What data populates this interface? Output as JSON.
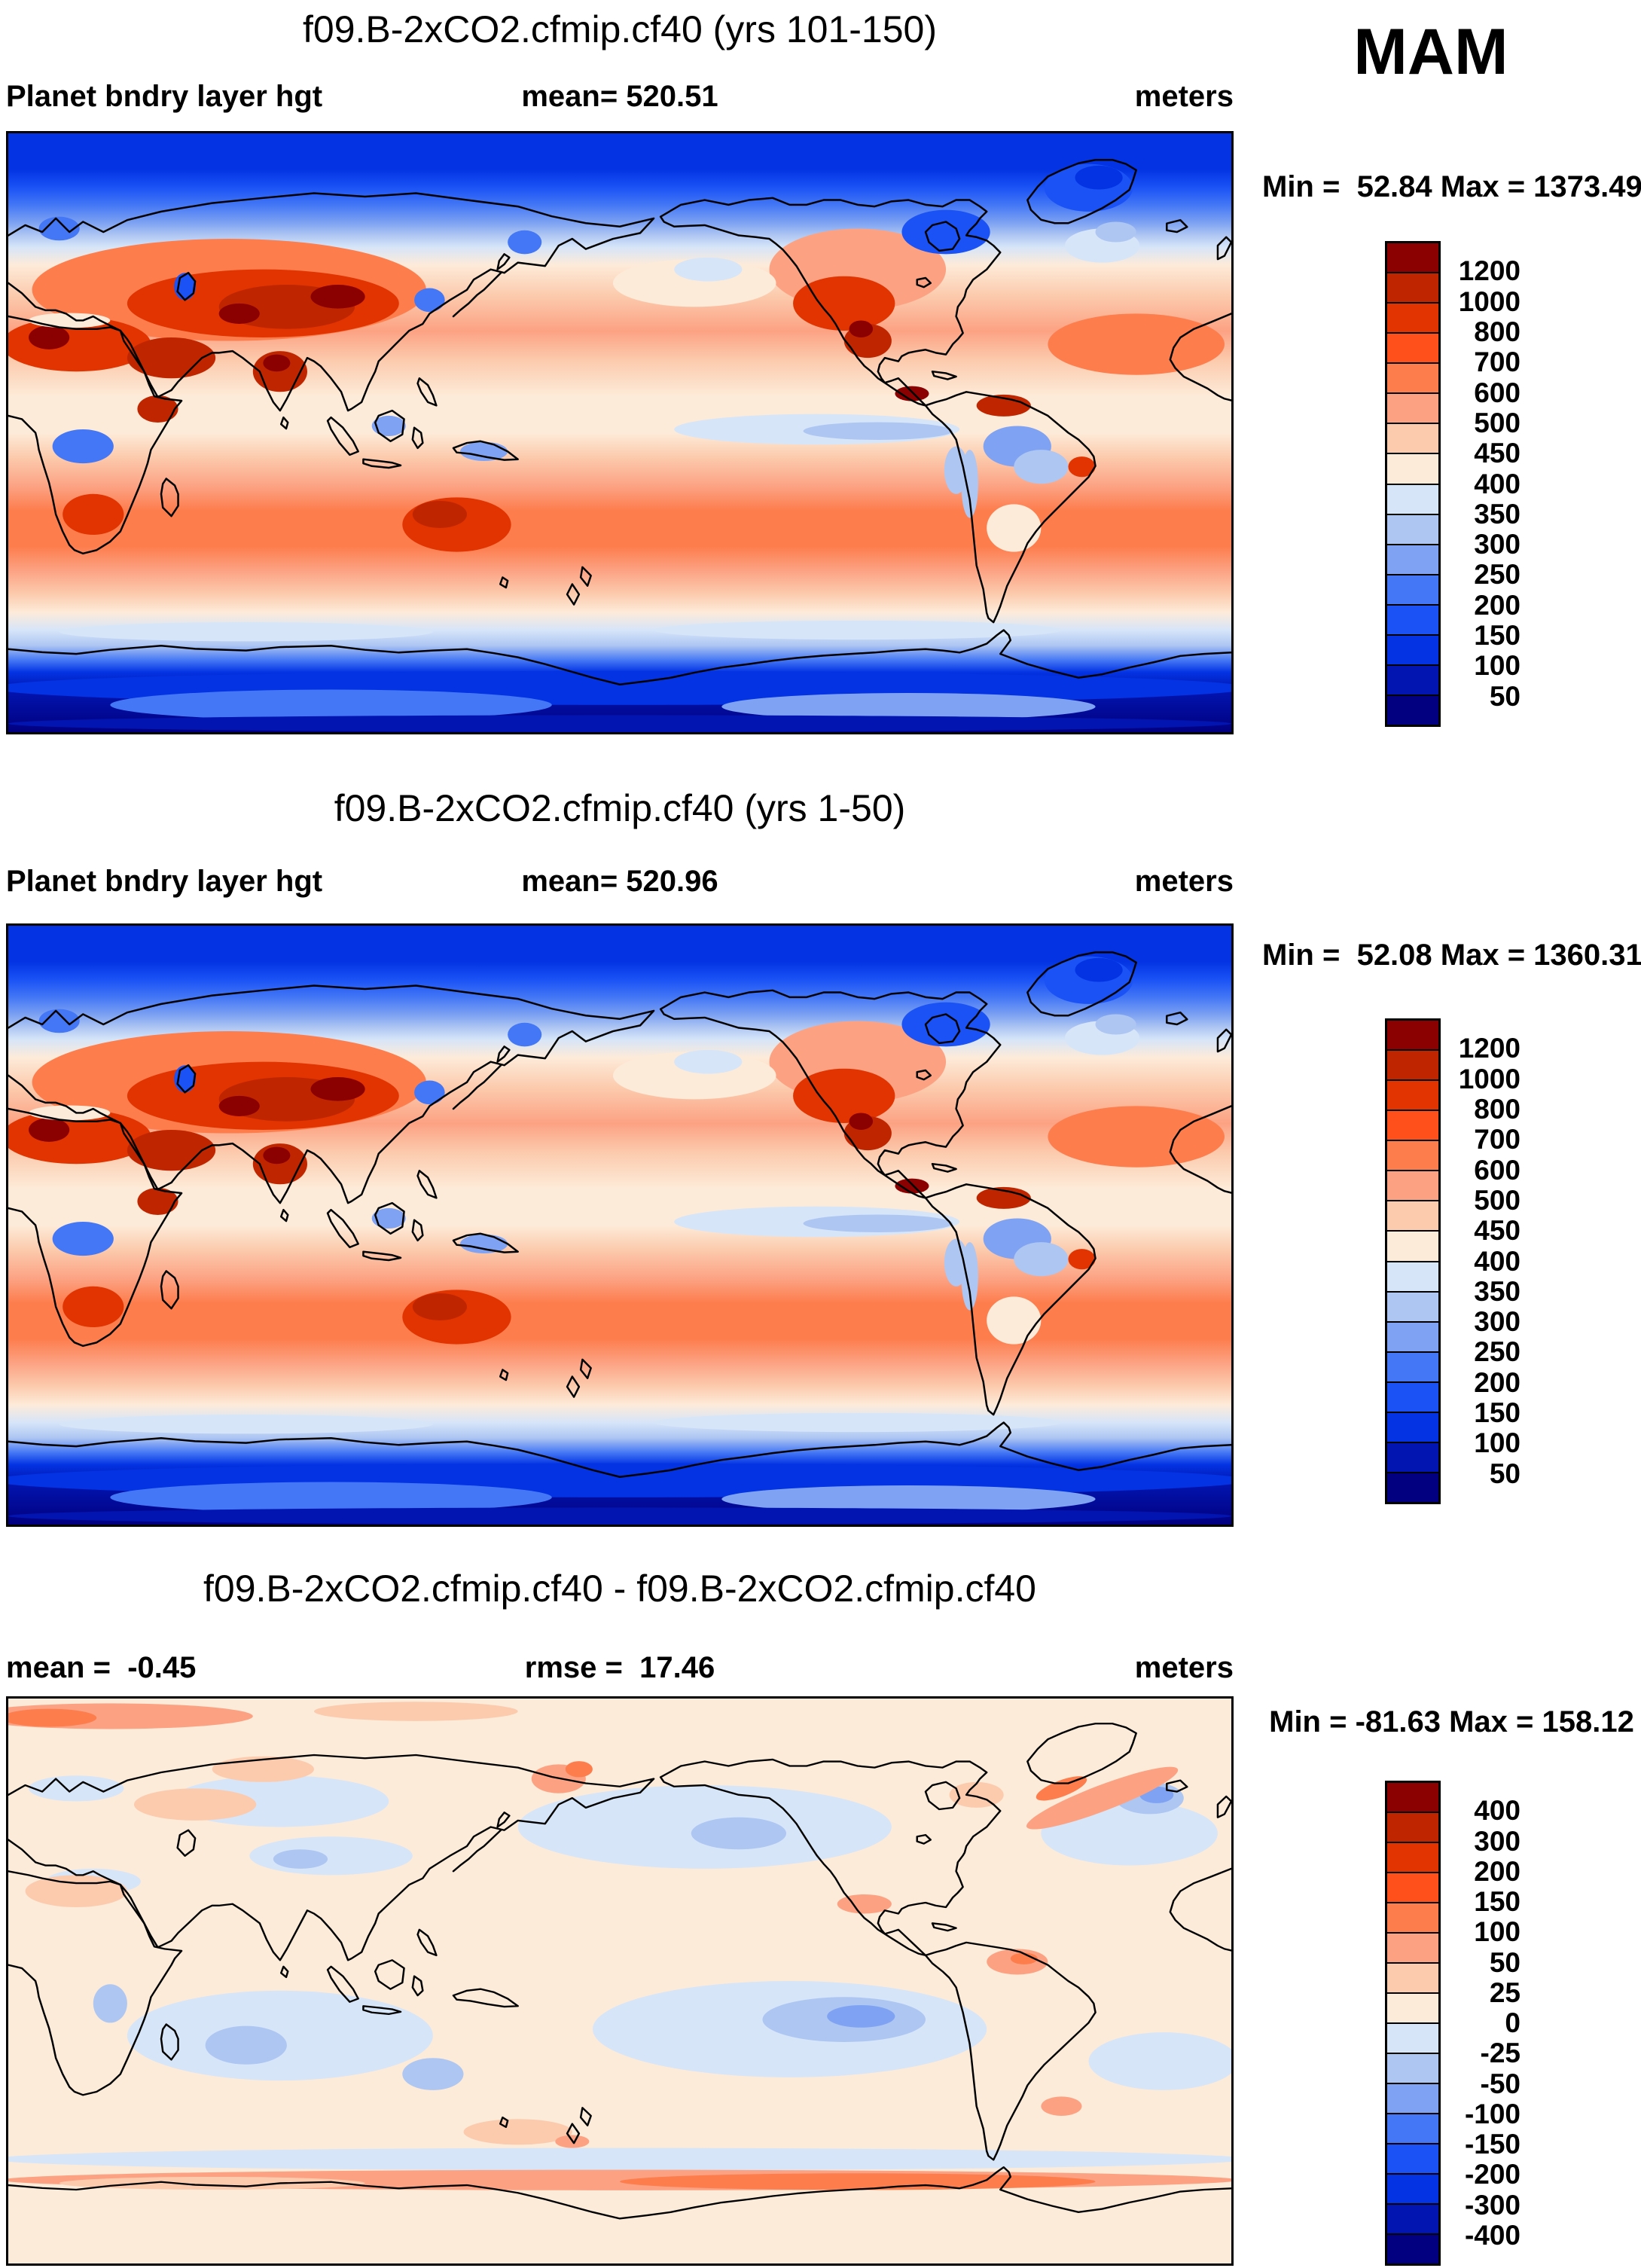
{
  "season_label": "MAM",
  "figure": {
    "panels": [
      {
        "title": "f09.B-2xCO2.cfmip.cf40 (yrs 101-150)",
        "field_label": "Planet bndry layer hgt",
        "mean_label": "mean= 520.51",
        "units_label": "meters",
        "minmax_label": "Min =  52.84 Max = 1373.49",
        "colorbar_labels": [
          "1200",
          "1000",
          "800",
          "700",
          "600",
          "500",
          "450",
          "400",
          "350",
          "300",
          "250",
          "200",
          "150",
          "100",
          "50"
        ]
      },
      {
        "title": "f09.B-2xCO2.cfmip.cf40 (yrs 1-50)",
        "field_label": "Planet bndry layer hgt",
        "mean_label": "mean= 520.96",
        "units_label": "meters",
        "minmax_label": "Min =  52.08 Max = 1360.31",
        "colorbar_labels": [
          "1200",
          "1000",
          "800",
          "700",
          "600",
          "500",
          "450",
          "400",
          "350",
          "300",
          "250",
          "200",
          "150",
          "100",
          "50"
        ]
      },
      {
        "title": "f09.B-2xCO2.cfmip.cf40 - f09.B-2xCO2.cfmip.cf40",
        "mean_label": "mean =  -0.45",
        "rmse_label": "rmse =  17.46",
        "units_label": "meters",
        "minmax_label": "Min = -81.63 Max = 158.12",
        "colorbar_labels": [
          "400",
          "300",
          "200",
          "150",
          "100",
          "50",
          "25",
          "0",
          "-25",
          "-50",
          "-100",
          "-150",
          "-200",
          "-300",
          "-400"
        ]
      }
    ],
    "palette_top_to_bottom": [
      "#8B0000",
      "#BF2600",
      "#E23400",
      "#FF4F1A",
      "#FD7D4D",
      "#FCA283",
      "#FCCBAE",
      "#FDEBD9",
      "#D6E5F8",
      "#AEC6F2",
      "#7FA3F2",
      "#4477F5",
      "#1A52F5",
      "#0333E3",
      "#0215B0",
      "#020080"
    ]
  },
  "chart_data": {
    "type": "heatmap",
    "title": "Planet bndry layer hgt, MAM season, global lat-lon contour maps",
    "projection": "cylindrical equidistant, 0-360E, 90N-90S",
    "panels": [
      {
        "name": "f09.B-2xCO2.cfmip.cf40 (yrs 101-150)",
        "variable": "Planet bndry layer hgt",
        "units": "meters",
        "mean": 520.51,
        "min": 52.84,
        "max": 1373.49,
        "contour_levels": [
          50,
          100,
          150,
          200,
          250,
          300,
          350,
          400,
          450,
          500,
          600,
          700,
          800,
          1000,
          1200
        ]
      },
      {
        "name": "f09.B-2xCO2.cfmip.cf40 (yrs 1-50)",
        "variable": "Planet bndry layer hgt",
        "units": "meters",
        "mean": 520.96,
        "min": 52.08,
        "max": 1360.31,
        "contour_levels": [
          50,
          100,
          150,
          200,
          250,
          300,
          350,
          400,
          450,
          500,
          600,
          700,
          800,
          1000,
          1200
        ]
      },
      {
        "name": "f09.B-2xCO2.cfmip.cf40 - f09.B-2xCO2.cfmip.cf40 (difference)",
        "variable": "Planet bndry layer hgt difference",
        "units": "meters",
        "mean": -0.45,
        "rmse": 17.46,
        "min": -81.63,
        "max": 158.12,
        "contour_levels": [
          -400,
          -300,
          -200,
          -150,
          -100,
          -50,
          -25,
          0,
          25,
          50,
          100,
          150,
          200,
          300,
          400
        ]
      }
    ],
    "legend_position": "right of each map",
    "colorbar_colors_top_to_bottom": [
      "#8B0000",
      "#BF2600",
      "#E23400",
      "#FF4F1A",
      "#FD7D4D",
      "#FCA283",
      "#FCCBAE",
      "#FDEBD9",
      "#D6E5F8",
      "#AEC6F2",
      "#7FA3F2",
      "#4477F5",
      "#1A52F5",
      "#0333E3",
      "#0215B0",
      "#020080"
    ]
  }
}
